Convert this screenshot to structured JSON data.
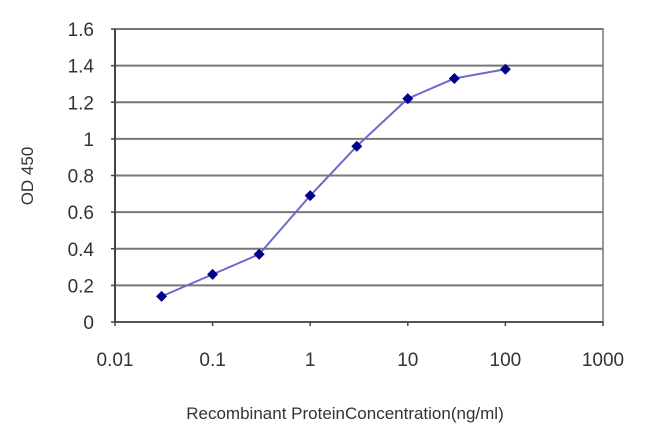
{
  "chart_data": {
    "type": "line",
    "title": "",
    "xlabel": "Recombinant ProteinConcentration(ng/ml)",
    "ylabel": "OD 450",
    "x_scale": "log",
    "xlim": [
      0.01,
      1000
    ],
    "ylim": [
      0,
      1.6
    ],
    "x_ticks": [
      "0.01",
      "0.1",
      "1",
      "10",
      "100",
      "1000"
    ],
    "y_ticks": [
      "0",
      "0.2",
      "0.4",
      "0.6",
      "0.8",
      "1",
      "1.2",
      "1.4",
      "1.6"
    ],
    "grid": {
      "horizontal": true,
      "vertical": false
    },
    "legend": null,
    "series": [
      {
        "name": "OD 450",
        "color": "#00008B",
        "line_color": "#6A6ACD",
        "marker": "diamond",
        "x": [
          0.03,
          0.1,
          0.3,
          1,
          3,
          10,
          30,
          100
        ],
        "values": [
          0.14,
          0.26,
          0.37,
          0.69,
          0.96,
          1.22,
          1.33,
          1.38
        ]
      }
    ]
  },
  "colors": {
    "background": "#ffffff",
    "gridline": "#777777",
    "frame": "#555555",
    "marker": "#00008B",
    "line": "#6A6ACD"
  }
}
